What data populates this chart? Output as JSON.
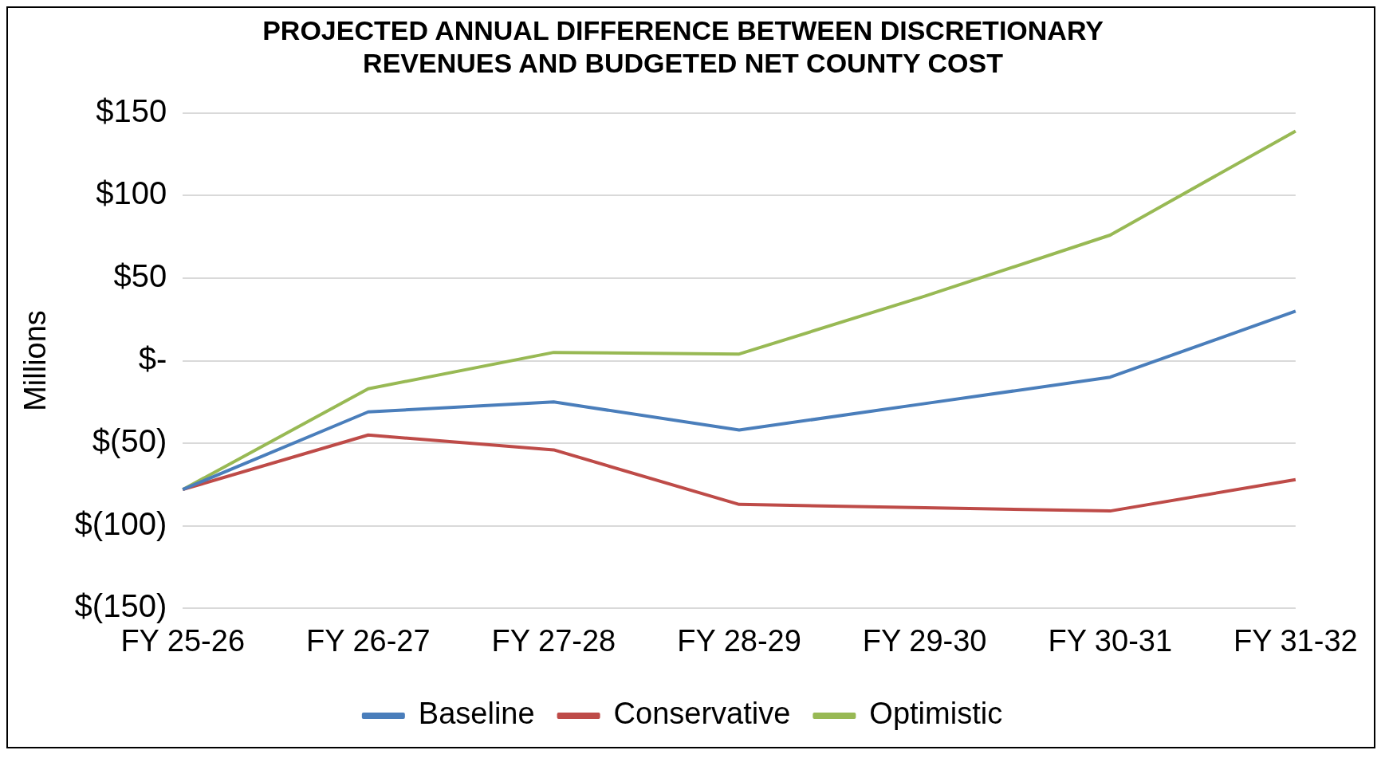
{
  "chart_data": {
    "type": "line",
    "title": [
      "PROJECTED ANNUAL DIFFERENCE BETWEEN DISCRETIONARY",
      "REVENUES AND BUDGETED NET COUNTY COST"
    ],
    "ylabel": "Millions",
    "categories": [
      "FY 25-26",
      "FY 26-27",
      "FY 27-28",
      "FY 28-29",
      "FY 29-30",
      "FY 30-31",
      "FY 31-32"
    ],
    "series": [
      {
        "name": "Baseline",
        "color": "#4a7ebb",
        "values": [
          -78,
          -31,
          -25,
          -42,
          -26,
          -10,
          30
        ]
      },
      {
        "name": "Conservative",
        "color": "#be4b48",
        "values": [
          -78,
          -45,
          -54,
          -87,
          -89,
          -91,
          -72
        ]
      },
      {
        "name": "Optimistic",
        "color": "#98b954",
        "values": [
          -78,
          -17,
          5,
          4,
          39,
          76,
          139
        ]
      }
    ],
    "ylim": [
      -150,
      150
    ],
    "yticks": [
      {
        "value": -150,
        "label": "$(150)"
      },
      {
        "value": -100,
        "label": "$(100)"
      },
      {
        "value": -50,
        "label": "$(50)"
      },
      {
        "value": 0,
        "label": "$-"
      },
      {
        "value": 50,
        "label": "$50"
      },
      {
        "value": 100,
        "label": "$100"
      },
      {
        "value": 150,
        "label": "$150"
      }
    ],
    "grid": "y",
    "legend": "bottom",
    "marker": "none",
    "line_style": "solid"
  }
}
